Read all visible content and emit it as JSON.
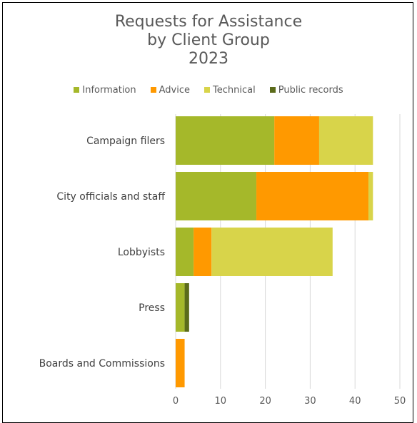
{
  "chart_data": {
    "type": "bar",
    "orientation": "horizontal",
    "stacked": true,
    "title_lines": [
      "Requests for Assistance",
      "by Client Group",
      "2023"
    ],
    "categories": [
      "Campaign filers",
      "City officials and staff",
      "Lobbyists",
      "Press",
      "Boards and Commissions"
    ],
    "series": [
      {
        "name": "Information",
        "color": "#a5b82a",
        "values": [
          22,
          18,
          4,
          2,
          0
        ]
      },
      {
        "name": "Advice",
        "color": "#ff9900",
        "values": [
          10,
          25,
          4,
          0,
          2
        ]
      },
      {
        "name": "Technical",
        "color": "#d8d44a",
        "values": [
          12,
          1,
          27,
          0,
          0
        ]
      },
      {
        "name": "Public records",
        "color": "#5b6b1a",
        "values": [
          0,
          0,
          0,
          1,
          0
        ]
      }
    ],
    "xlim": [
      0,
      50
    ],
    "xticks": [
      "0",
      "10",
      "20",
      "30",
      "40",
      "50"
    ],
    "grid": true,
    "legend_position": "top"
  }
}
